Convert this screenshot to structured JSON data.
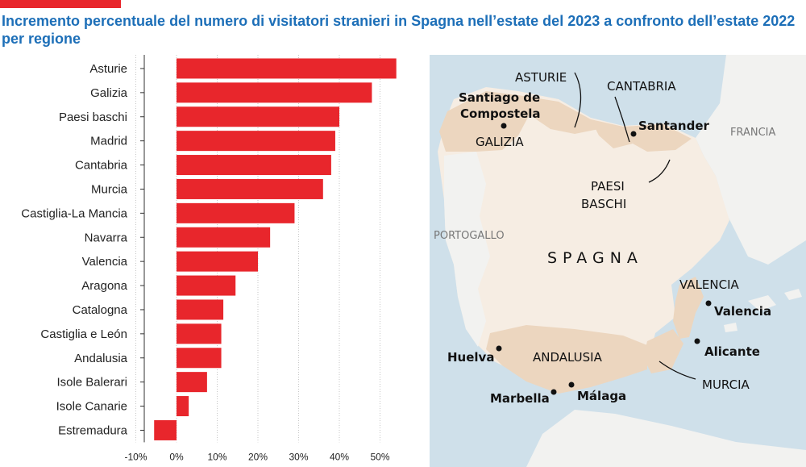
{
  "header": {
    "title": "Incremento percentuale del numero di visitatori stranieri in Spagna nell’estate del 2023 a confronto dell’estate 2022 per regione"
  },
  "colors": {
    "accent": "#e8262c",
    "bar": "#e8262c",
    "title": "#1d6fb8",
    "sea": "#cfe0ea",
    "land": "#f6ede3",
    "highlight": "#ecd6bf",
    "other_land": "#f2f2f0"
  },
  "chart_data": {
    "type": "bar",
    "orientation": "horizontal",
    "categories": [
      "Asturie",
      "Galizia",
      "Paesi baschi",
      "Madrid",
      "Cantabria",
      "Murcia",
      "Castiglia-La Mancia",
      "Navarra",
      "Valencia",
      "Aragona",
      "Catalogna",
      "Castiglia e León",
      "Andalusia",
      "Isole Balerari",
      "Isole Canarie",
      "Estremadura"
    ],
    "values": [
      54,
      48,
      40,
      39,
      38,
      36,
      29,
      23,
      20,
      14.5,
      11.5,
      11,
      11,
      7.5,
      3,
      -5.5
    ],
    "xlim": [
      -10,
      55
    ],
    "ticks": [
      {
        "value": -10,
        "label": "-10%"
      },
      {
        "value": 0,
        "label": "0%"
      },
      {
        "value": 10,
        "label": "10%"
      },
      {
        "value": 20,
        "label": "20%"
      },
      {
        "value": 30,
        "label": "30%"
      },
      {
        "value": 40,
        "label": "40%"
      },
      {
        "value": 50,
        "label": "50%"
      }
    ]
  },
  "map": {
    "country": "SPAGNA",
    "neighbors": [
      "PORTOGALLO",
      "FRANCIA"
    ],
    "regions": [
      "ASTURIE",
      "CANTABRIA",
      "GALIZIA",
      "PAESI BASCHI",
      "VALENCIA",
      "ANDALUSIA",
      "MURCIA"
    ],
    "cities": [
      "Santiago de Compostela",
      "Santander",
      "Valencia",
      "Alicante",
      "Huelva",
      "Marbella",
      "Málaga"
    ]
  }
}
